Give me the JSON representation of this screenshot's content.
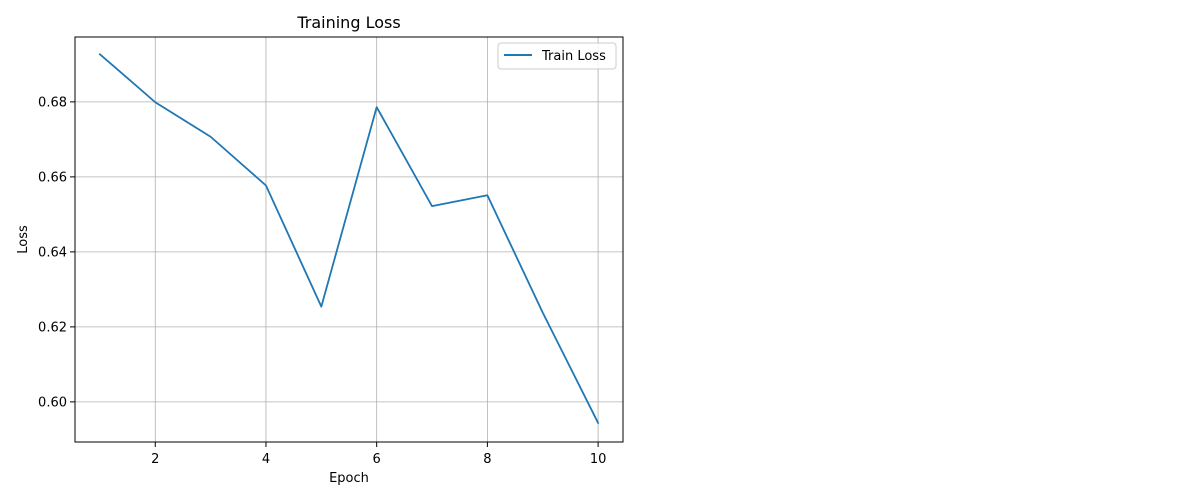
{
  "chart_data": {
    "type": "line",
    "title": "Training Loss",
    "xlabel": "Epoch",
    "ylabel": "Loss",
    "xlim": [
      0.55,
      10.45
    ],
    "ylim": [
      0.5893,
      0.6973
    ],
    "xticks": [
      2,
      4,
      6,
      8,
      10
    ],
    "yticks": [
      0.6,
      0.62,
      0.64,
      0.66,
      0.68
    ],
    "grid": true,
    "legend_position": "upper right",
    "series": [
      {
        "name": "Train Loss",
        "color": "#1f77b4",
        "x": [
          1,
          2,
          3,
          4,
          5,
          6,
          7,
          8,
          9,
          10
        ],
        "y": [
          0.6927,
          0.6799,
          0.6707,
          0.6577,
          0.6254,
          0.6786,
          0.6522,
          0.6551,
          0.6238,
          0.5944
        ]
      }
    ]
  }
}
